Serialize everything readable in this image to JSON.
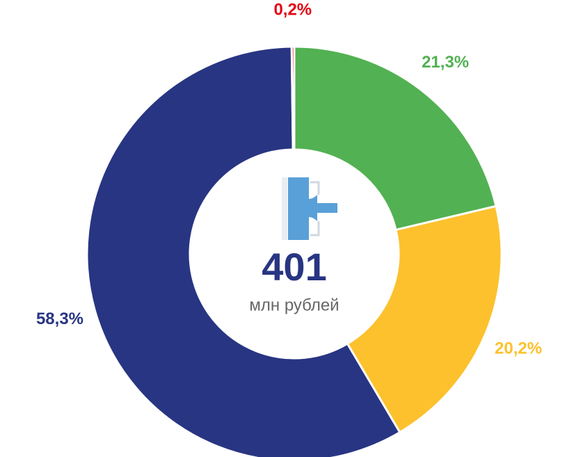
{
  "chart_data": {
    "type": "donut",
    "categories": [
      "green",
      "yellow",
      "blue",
      "red"
    ],
    "series": [
      {
        "values": [
          21.3,
          20.2,
          58.3,
          0.2
        ],
        "value_labels": [
          "21,3%",
          "20,2%",
          "58,3%",
          "0,2%"
        ],
        "colors": [
          "#52b152",
          "#fcc12d",
          "#283582",
          "#e30613"
        ]
      }
    ],
    "center_value": 401,
    "center_label": "млн рублей"
  }
}
